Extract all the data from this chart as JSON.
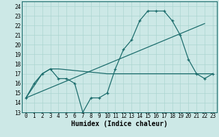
{
  "xlabel": "Humidex (Indice chaleur)",
  "bg_color": "#cce8e6",
  "line_color": "#1a6b6b",
  "grid_color": "#aad4d0",
  "xlim": [
    -0.5,
    23.5
  ],
  "ylim": [
    13,
    24.5
  ],
  "yticks": [
    13,
    14,
    15,
    16,
    17,
    18,
    19,
    20,
    21,
    22,
    23,
    24
  ],
  "xticks": [
    0,
    1,
    2,
    3,
    4,
    5,
    6,
    7,
    8,
    9,
    10,
    11,
    12,
    13,
    14,
    15,
    16,
    17,
    18,
    19,
    20,
    21,
    22,
    23
  ],
  "line1_x": [
    0,
    1,
    2,
    3,
    4,
    5,
    6,
    7,
    8,
    9,
    10,
    11,
    12,
    13,
    14,
    15,
    16,
    17,
    18,
    19,
    20,
    21,
    22,
    23
  ],
  "line1_y": [
    14.5,
    16,
    17,
    17.5,
    16.5,
    16.5,
    16,
    13,
    14.5,
    14.5,
    15,
    17.5,
    19.5,
    20.5,
    22.5,
    23.5,
    23.5,
    23.5,
    22.5,
    21,
    18.5,
    17,
    16.5,
    17
  ],
  "line2_x": [
    0,
    2,
    3,
    4,
    10,
    22,
    23
  ],
  "line2_y": [
    14.5,
    17,
    17.5,
    17.5,
    17,
    17,
    17
  ],
  "line3_x": [
    0,
    22
  ],
  "line3_y": [
    14.5,
    22.2
  ],
  "tick_fontsize": 5.5,
  "xlabel_fontsize": 7,
  "xlabel_fontweight": "bold"
}
